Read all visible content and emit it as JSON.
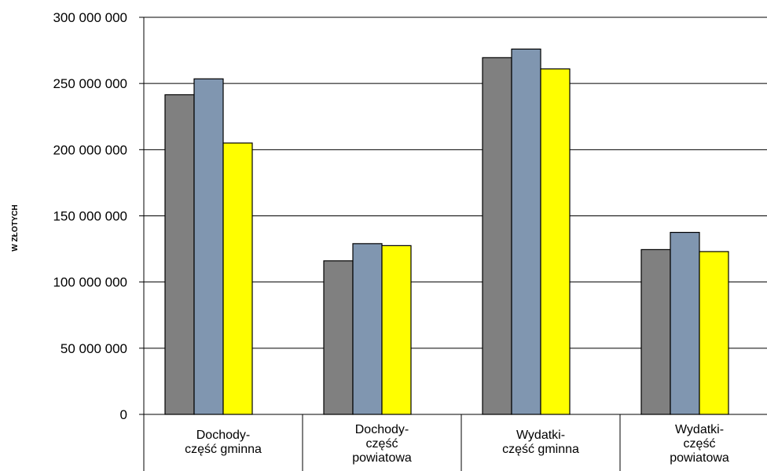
{
  "chart_data": {
    "type": "bar",
    "title": "",
    "ylabel": "W ZŁOTYCH",
    "xlabel": "",
    "ylim": [
      0,
      300000000
    ],
    "yticks": [
      0,
      50000000,
      100000000,
      150000000,
      200000000,
      250000000,
      300000000
    ],
    "ytick_labels": [
      "0",
      "50 000 000",
      "100 000 000",
      "150 000 000",
      "200 000 000",
      "250 000 000",
      "300 000 000"
    ],
    "grid": true,
    "legend": "none",
    "categories": [
      [
        "Dochody-",
        "część gminna"
      ],
      [
        "Dochody-",
        "część",
        "powiatowa"
      ],
      [
        "Wydatki-",
        "część gminna"
      ],
      [
        "Wydatki-",
        "część",
        "powiatowa"
      ]
    ],
    "series": [
      {
        "color": "#808080",
        "values": [
          241500000,
          116000000,
          269500000,
          124500000
        ]
      },
      {
        "color": "#8096B0",
        "values": [
          253500000,
          129000000,
          276000000,
          137500000
        ]
      },
      {
        "color": "#FFFF00",
        "values": [
          205000000,
          127500000,
          261000000,
          123000000
        ]
      }
    ]
  }
}
